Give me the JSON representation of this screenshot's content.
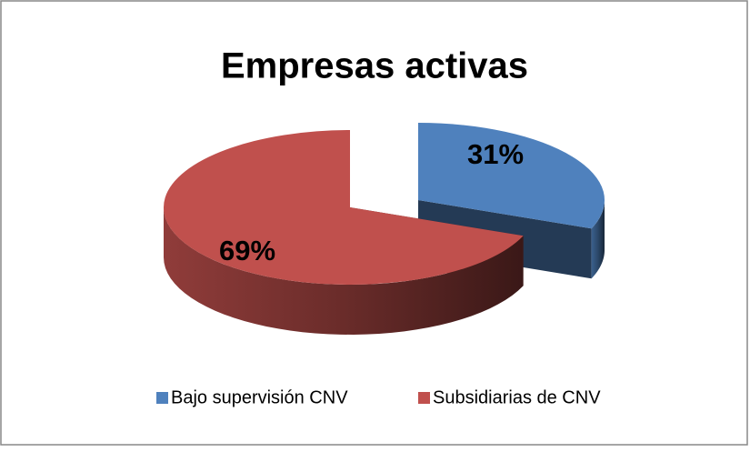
{
  "chart_data": {
    "type": "pie3d",
    "title": "Empresas activas",
    "categories": [
      "Bajo supervisión CNV",
      "Subsidiarias de CNV"
    ],
    "values": [
      31,
      69
    ],
    "value_labels": [
      "31%",
      "69%"
    ],
    "colors": [
      "#4f81bd",
      "#c0504d"
    ],
    "legend": "bottom"
  }
}
